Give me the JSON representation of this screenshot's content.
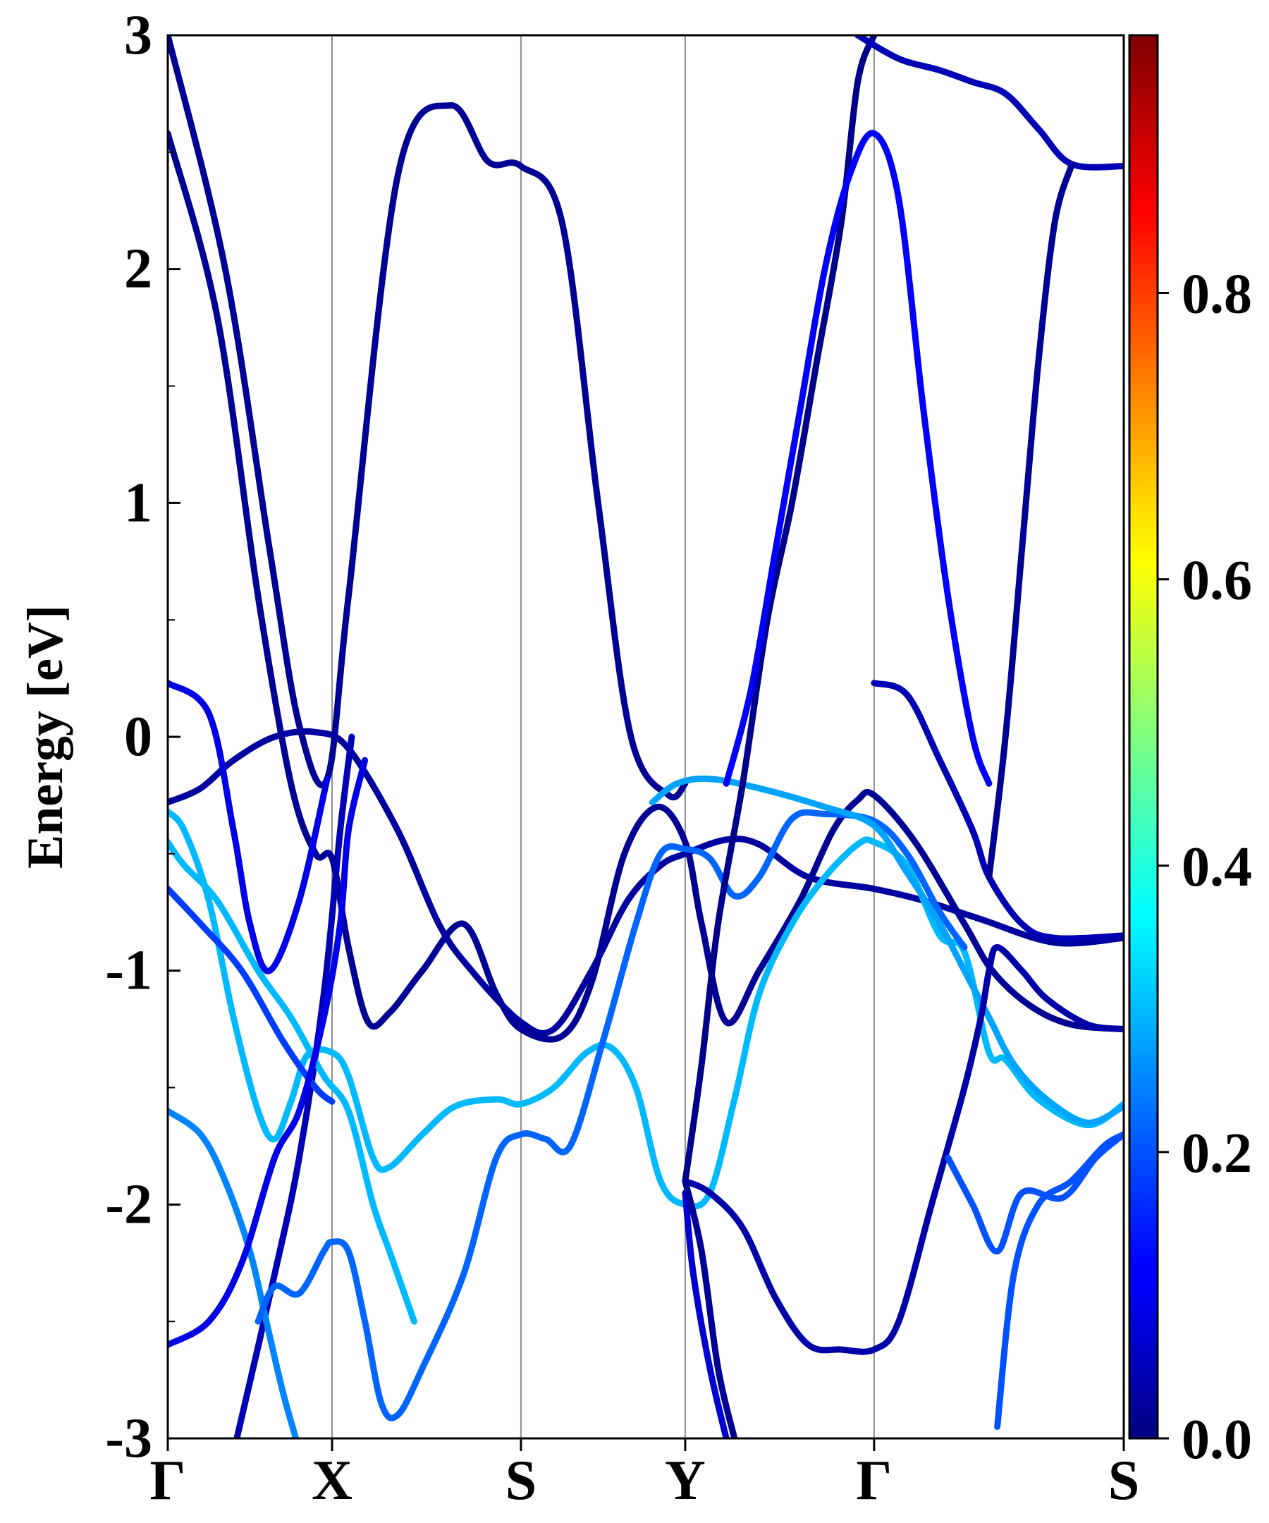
{
  "chart_data": {
    "type": "line",
    "title": "",
    "ylabel": "Energy [eV]",
    "xlabel": "",
    "ylim": [
      -3,
      3
    ],
    "yticks": [
      "3",
      "2",
      "1",
      "0",
      "-1",
      "-2",
      "-3"
    ],
    "ytick_values": [
      3,
      2,
      1,
      0,
      -1,
      -2,
      -3
    ],
    "xlim": [
      0,
      5.82
    ],
    "kpoint_labels": [
      "Γ",
      "X",
      "S",
      "Y",
      "Γ",
      "S"
    ],
    "kpoint_positions": [
      0,
      1,
      2.15,
      3.15,
      4.3,
      5.82
    ],
    "grid": "vertical lines at high-symmetry points",
    "colorbar": {
      "colormap": "jet",
      "range": [
        0.0,
        0.98
      ],
      "ticks": [
        "0.0",
        "0.2",
        "0.4",
        "0.6",
        "0.8"
      ],
      "tick_values": [
        0.0,
        0.2,
        0.4,
        0.6,
        0.8
      ]
    },
    "series": [
      {
        "weight": 0.02,
        "points": [
          [
            0,
            3.0
          ],
          [
            0.35,
            2.0
          ],
          [
            0.62,
            0.8
          ],
          [
            0.8,
            0.05
          ],
          [
            0.97,
            -0.18
          ],
          [
            1.1,
            0.6
          ],
          [
            1.4,
            2.4
          ],
          [
            1.72,
            2.7
          ],
          [
            1.95,
            2.46
          ],
          [
            2.15,
            2.44
          ],
          [
            2.4,
            2.2
          ],
          [
            2.62,
            1.0
          ],
          [
            2.82,
            0.0
          ],
          [
            3.05,
            -0.25
          ],
          [
            3.15,
            -0.2
          ]
        ]
      },
      {
        "weight": 0.02,
        "points": [
          [
            0,
            2.58
          ],
          [
            0.3,
            1.8
          ],
          [
            0.55,
            0.6
          ],
          [
            0.75,
            -0.2
          ],
          [
            0.9,
            -0.5
          ],
          [
            1.0,
            -0.52
          ],
          [
            1.1,
            -0.9
          ],
          [
            1.22,
            -1.22
          ],
          [
            1.35,
            -1.18
          ],
          [
            1.55,
            -1.0
          ],
          [
            1.8,
            -0.8
          ],
          [
            2.0,
            -1.1
          ],
          [
            2.15,
            -1.25
          ],
          [
            2.4,
            -1.28
          ],
          [
            2.58,
            -1.05
          ],
          [
            2.78,
            -0.5
          ],
          [
            2.98,
            -0.3
          ],
          [
            3.15,
            -0.45
          ],
          [
            3.25,
            -0.8
          ],
          [
            3.4,
            -1.22
          ],
          [
            3.6,
            -1.0
          ],
          [
            3.85,
            -0.7
          ],
          [
            4.05,
            -0.4
          ],
          [
            4.2,
            -0.27
          ],
          [
            4.3,
            -0.25
          ],
          [
            4.55,
            -0.45
          ],
          [
            4.85,
            -0.8
          ],
          [
            5.02,
            -1.0
          ],
          [
            5.25,
            -1.15
          ],
          [
            5.5,
            -1.23
          ],
          [
            5.82,
            -1.25
          ]
        ]
      },
      {
        "weight": 0.03,
        "points": [
          [
            0,
            -0.28
          ],
          [
            0.2,
            -0.22
          ],
          [
            0.4,
            -0.1
          ],
          [
            0.65,
            0.0
          ],
          [
            0.9,
            0.02
          ],
          [
            1.1,
            -0.05
          ],
          [
            1.4,
            -0.4
          ],
          [
            1.65,
            -0.8
          ],
          [
            1.85,
            -1.0
          ],
          [
            2.15,
            -1.22
          ],
          [
            2.35,
            -1.25
          ],
          [
            2.58,
            -1.0
          ],
          [
            2.8,
            -0.7
          ],
          [
            3.0,
            -0.55
          ],
          [
            3.15,
            -0.5
          ],
          [
            3.4,
            -0.44
          ],
          [
            3.6,
            -0.46
          ],
          [
            3.9,
            -0.6
          ],
          [
            4.3,
            -0.65
          ],
          [
            4.6,
            -0.7
          ],
          [
            4.95,
            -0.78
          ],
          [
            5.4,
            -0.88
          ],
          [
            5.82,
            -0.86
          ]
        ]
      },
      {
        "weight": 0.1,
        "points": [
          [
            0,
            0.23
          ],
          [
            0.25,
            0.1
          ],
          [
            0.4,
            -0.4
          ],
          [
            0.5,
            -0.8
          ],
          [
            0.62,
            -1.0
          ],
          [
            0.8,
            -0.7
          ],
          [
            0.97,
            -0.18
          ]
        ]
      },
      {
        "weight": 0.05,
        "points": [
          [
            0.42,
            -3.0
          ],
          [
            0.65,
            -2.3
          ],
          [
            0.8,
            -1.8
          ],
          [
            0.95,
            -1.1
          ],
          [
            1.05,
            -0.4
          ],
          [
            1.12,
            0.0
          ]
        ]
      },
      {
        "weight": 0.3,
        "points": [
          [
            0,
            -0.32
          ],
          [
            0.1,
            -0.4
          ],
          [
            0.25,
            -0.7
          ],
          [
            0.4,
            -1.2
          ],
          [
            0.55,
            -1.6
          ],
          [
            0.65,
            -1.72
          ],
          [
            0.75,
            -1.56
          ],
          [
            0.85,
            -1.36
          ],
          [
            1.0,
            -1.35
          ],
          [
            1.1,
            -1.45
          ],
          [
            1.25,
            -1.8
          ],
          [
            1.35,
            -1.84
          ],
          [
            1.55,
            -1.7
          ],
          [
            1.75,
            -1.58
          ],
          [
            2.0,
            -1.55
          ],
          [
            2.15,
            -1.57
          ],
          [
            2.35,
            -1.5
          ],
          [
            2.55,
            -1.35
          ],
          [
            2.7,
            -1.33
          ],
          [
            2.85,
            -1.5
          ],
          [
            3.0,
            -1.9
          ],
          [
            3.15,
            -2.0
          ],
          [
            3.3,
            -1.95
          ],
          [
            3.45,
            -1.55
          ],
          [
            3.6,
            -1.1
          ],
          [
            3.8,
            -0.8
          ],
          [
            4.0,
            -0.6
          ],
          [
            4.2,
            -0.46
          ],
          [
            4.3,
            -0.45
          ],
          [
            4.5,
            -0.55
          ],
          [
            4.7,
            -0.85
          ],
          [
            4.85,
            -0.92
          ],
          [
            5.0,
            -1.35
          ],
          [
            5.1,
            -1.38
          ],
          [
            5.3,
            -1.55
          ],
          [
            5.6,
            -1.66
          ],
          [
            5.82,
            -1.57
          ]
        ]
      },
      {
        "weight": 0.3,
        "points": [
          [
            0,
            -0.45
          ],
          [
            0.1,
            -0.55
          ],
          [
            0.3,
            -0.7
          ],
          [
            0.55,
            -1.0
          ],
          [
            0.75,
            -1.2
          ],
          [
            0.95,
            -1.45
          ],
          [
            1.1,
            -1.6
          ],
          [
            1.25,
            -2.0
          ],
          [
            1.35,
            -2.2
          ],
          [
            1.45,
            -2.4
          ],
          [
            1.5,
            -2.5
          ]
        ]
      },
      {
        "weight": 0.18,
        "points": [
          [
            0,
            -0.65
          ],
          [
            0.2,
            -0.8
          ],
          [
            0.45,
            -1.0
          ],
          [
            0.7,
            -1.3
          ],
          [
            0.9,
            -1.5
          ],
          [
            1.0,
            -1.56
          ]
        ]
      },
      {
        "weight": 0.25,
        "points": [
          [
            0,
            -1.6
          ],
          [
            0.2,
            -1.7
          ],
          [
            0.35,
            -1.9
          ],
          [
            0.5,
            -2.2
          ],
          [
            0.6,
            -2.5
          ],
          [
            0.7,
            -2.8
          ],
          [
            0.78,
            -3.0
          ]
        ]
      },
      {
        "weight": 0.22,
        "points": [
          [
            0.55,
            -2.5
          ],
          [
            0.65,
            -2.35
          ],
          [
            0.8,
            -2.38
          ],
          [
            0.95,
            -2.2
          ],
          [
            1.0,
            -2.16
          ],
          [
            1.1,
            -2.2
          ],
          [
            1.2,
            -2.5
          ],
          [
            1.3,
            -2.85
          ],
          [
            1.4,
            -2.9
          ],
          [
            1.55,
            -2.7
          ],
          [
            1.8,
            -2.3
          ],
          [
            2.0,
            -1.8
          ],
          [
            2.15,
            -1.7
          ],
          [
            2.3,
            -1.72
          ],
          [
            2.45,
            -1.75
          ],
          [
            2.65,
            -1.3
          ],
          [
            2.85,
            -0.8
          ],
          [
            3.0,
            -0.5
          ],
          [
            3.15,
            -0.48
          ],
          [
            3.3,
            -0.52
          ],
          [
            3.45,
            -0.68
          ],
          [
            3.6,
            -0.6
          ],
          [
            3.8,
            -0.35
          ],
          [
            4.0,
            -0.33
          ],
          [
            4.3,
            -0.36
          ],
          [
            4.5,
            -0.5
          ],
          [
            4.7,
            -0.75
          ],
          [
            4.85,
            -0.9
          ]
        ]
      },
      {
        "weight": 0.28,
        "points": [
          [
            2.95,
            -0.28
          ],
          [
            3.1,
            -0.2
          ],
          [
            3.3,
            -0.18
          ],
          [
            3.6,
            -0.22
          ],
          [
            4.0,
            -0.3
          ],
          [
            4.3,
            -0.38
          ],
          [
            4.5,
            -0.58
          ],
          [
            4.7,
            -0.8
          ],
          [
            4.85,
            -1.0
          ],
          [
            5.0,
            -1.2
          ],
          [
            5.15,
            -1.4
          ],
          [
            5.35,
            -1.55
          ],
          [
            5.6,
            -1.65
          ],
          [
            5.82,
            -1.58
          ]
        ]
      },
      {
        "weight": 0.1,
        "points": [
          [
            0,
            -2.6
          ],
          [
            0.25,
            -2.5
          ],
          [
            0.45,
            -2.25
          ],
          [
            0.65,
            -1.8
          ],
          [
            0.8,
            -1.6
          ],
          [
            0.95,
            -1.2
          ],
          [
            1.05,
            -0.8
          ],
          [
            1.1,
            -0.4
          ],
          [
            1.2,
            -0.1
          ]
        ]
      },
      {
        "weight": 0.04,
        "points": [
          [
            3.15,
            -1.9
          ],
          [
            3.3,
            -1.95
          ],
          [
            3.5,
            -2.1
          ],
          [
            3.7,
            -2.4
          ],
          [
            3.9,
            -2.6
          ],
          [
            4.1,
            -2.62
          ],
          [
            4.3,
            -2.62
          ],
          [
            4.45,
            -2.5
          ],
          [
            4.65,
            -2.0
          ],
          [
            4.85,
            -1.5
          ],
          [
            4.95,
            -1.2
          ],
          [
            5.0,
            -1.0
          ],
          [
            5.05,
            -0.9
          ],
          [
            5.2,
            -1.0
          ],
          [
            5.35,
            -1.12
          ],
          [
            5.6,
            -1.23
          ],
          [
            5.82,
            -1.25
          ]
        ]
      },
      {
        "weight": 0.01,
        "points": [
          [
            3.15,
            -1.9
          ],
          [
            3.25,
            -1.4
          ],
          [
            3.35,
            -0.8
          ],
          [
            3.5,
            -0.2
          ],
          [
            3.65,
            0.5
          ],
          [
            3.8,
            1.0
          ],
          [
            3.95,
            1.6
          ],
          [
            4.1,
            2.2
          ],
          [
            4.2,
            2.8
          ],
          [
            4.3,
            3.0
          ]
        ]
      },
      {
        "weight": 0.08,
        "points": [
          [
            3.15,
            -1.95
          ],
          [
            3.2,
            -2.3
          ],
          [
            3.3,
            -2.7
          ],
          [
            3.4,
            -3.0
          ]
        ]
      },
      {
        "weight": 0.12,
        "points": [
          [
            3.4,
            -0.2
          ],
          [
            3.55,
            0.2
          ],
          [
            3.7,
            0.8
          ],
          [
            3.85,
            1.4
          ],
          [
            4.0,
            2.0
          ],
          [
            4.15,
            2.4
          ],
          [
            4.3,
            2.58
          ],
          [
            4.45,
            2.3
          ],
          [
            4.6,
            1.4
          ],
          [
            4.75,
            0.6
          ],
          [
            4.9,
            0.0
          ],
          [
            5.0,
            -0.2
          ]
        ]
      },
      {
        "weight": 0.05,
        "points": [
          [
            4.2,
            3.0
          ],
          [
            4.45,
            2.9
          ],
          [
            4.7,
            2.85
          ],
          [
            4.9,
            2.8
          ],
          [
            5.1,
            2.75
          ],
          [
            5.3,
            2.6
          ],
          [
            5.5,
            2.45
          ],
          [
            5.82,
            2.44
          ]
        ]
      },
      {
        "weight": 0.05,
        "points": [
          [
            4.3,
            0.23
          ],
          [
            4.5,
            0.18
          ],
          [
            4.7,
            -0.1
          ],
          [
            4.9,
            -0.4
          ],
          [
            5.0,
            -0.6
          ],
          [
            5.2,
            -0.8
          ],
          [
            5.4,
            -0.86
          ],
          [
            5.82,
            -0.85
          ]
        ]
      },
      {
        "weight": 0.02,
        "points": [
          [
            5.0,
            -0.6
          ],
          [
            5.1,
            0.0
          ],
          [
            5.2,
            0.8
          ],
          [
            5.3,
            1.6
          ],
          [
            5.4,
            2.2
          ],
          [
            5.5,
            2.44
          ]
        ]
      },
      {
        "weight": 0.2,
        "points": [
          [
            5.05,
            -2.95
          ],
          [
            5.15,
            -2.3
          ],
          [
            5.3,
            -2.0
          ],
          [
            5.5,
            -1.9
          ],
          [
            5.7,
            -1.75
          ],
          [
            5.82,
            -1.7
          ]
        ]
      },
      {
        "weight": 0.2,
        "points": [
          [
            4.75,
            -1.8
          ],
          [
            4.9,
            -2.0
          ],
          [
            5.05,
            -2.2
          ],
          [
            5.2,
            -1.95
          ],
          [
            5.45,
            -1.97
          ],
          [
            5.65,
            -1.8
          ],
          [
            5.82,
            -1.7
          ]
        ]
      },
      {
        "weight": 0.02,
        "points": [
          [
            3.15,
            -1.9
          ],
          [
            3.25,
            -2.2
          ],
          [
            3.35,
            -2.7
          ],
          [
            3.45,
            -3.0
          ]
        ]
      }
    ]
  }
}
